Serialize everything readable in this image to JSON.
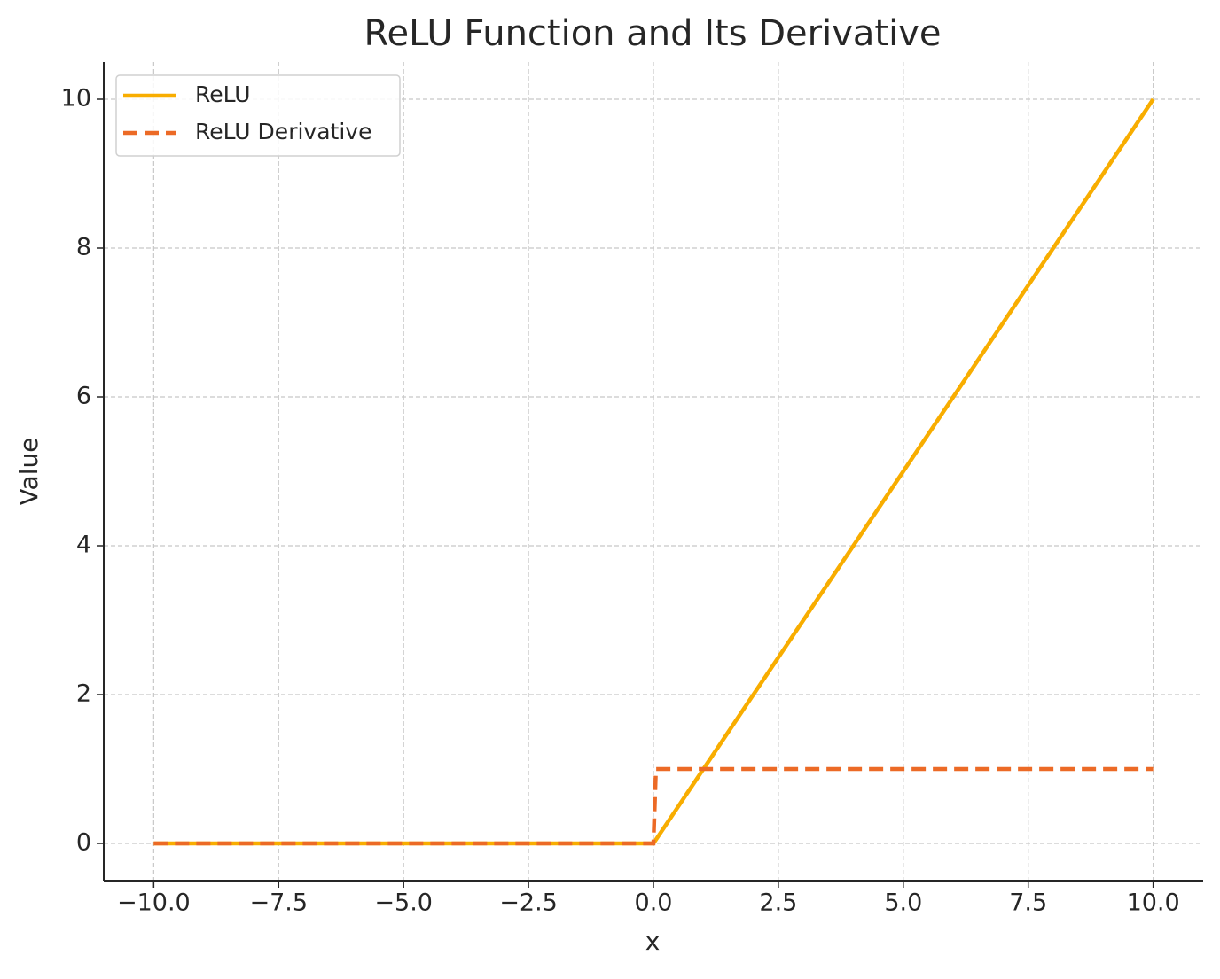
{
  "chart_data": {
    "type": "line",
    "title": "ReLU Function and Its Derivative",
    "x_label": "x",
    "y_label": "Value",
    "x": [
      -10,
      0,
      0.05,
      10
    ],
    "series": [
      {
        "name": "ReLU",
        "color": "#f8ad00",
        "dash": "solid",
        "values": [
          0,
          0,
          0.05,
          10
        ]
      },
      {
        "name": "ReLU Derivative",
        "color": "#ec6a26",
        "dash": "dashed",
        "values": [
          0,
          0,
          1,
          1
        ]
      }
    ],
    "xlim": [
      -11,
      11
    ],
    "xticks": [
      {
        "value": -10,
        "label": "−10.0"
      },
      {
        "value": -7.5,
        "label": "−7.5"
      },
      {
        "value": -5,
        "label": "−5.0"
      },
      {
        "value": -2.5,
        "label": "−2.5"
      },
      {
        "value": 0,
        "label": "0.0"
      },
      2.5,
      {
        "value": 5,
        "label": "5.0"
      },
      7.5,
      {
        "value": 10,
        "label": "10.0"
      }
    ],
    "ylim": [
      -0.5,
      10.5
    ],
    "yticks": [
      0,
      2,
      4,
      6,
      8,
      10
    ],
    "grid": true,
    "legend": "upper left"
  }
}
